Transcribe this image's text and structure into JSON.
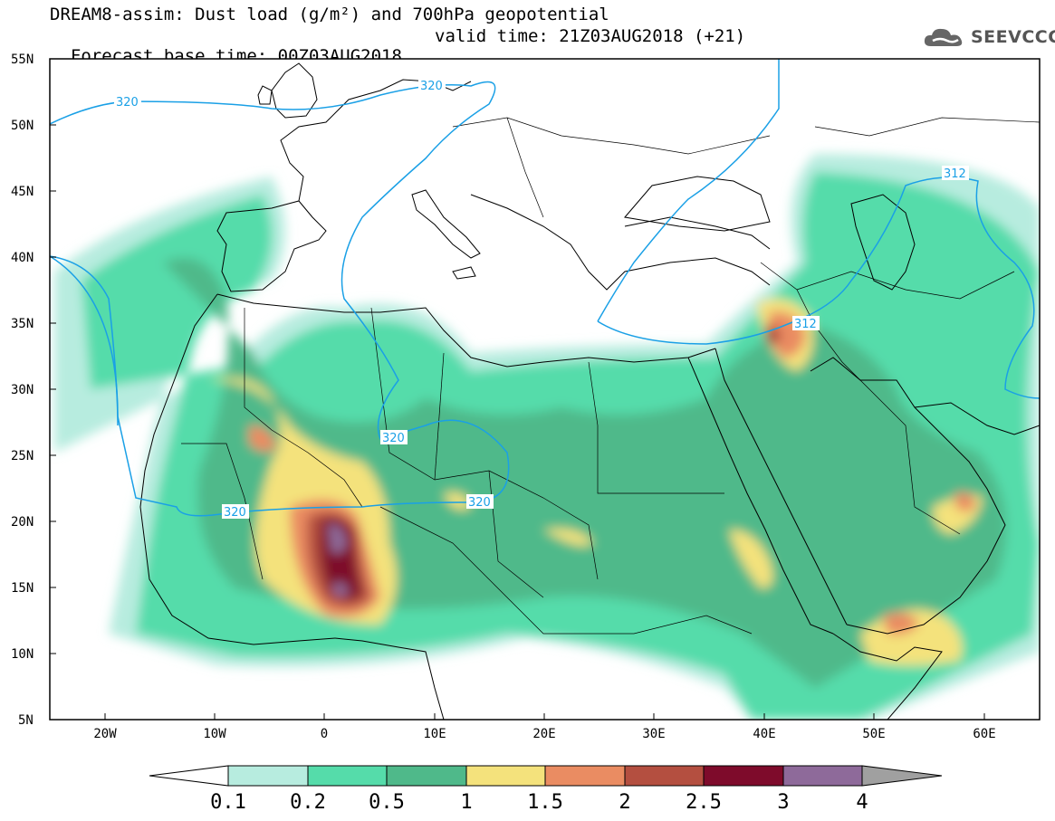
{
  "title_line1": "DREAM8-assim: Dust load (g/m²) and 700hPa geopotential",
  "title_line2_left": "Forecast base time: 00Z03AUG2018",
  "title_line2_right": "valid time: 21Z03AUG2018 (+21)",
  "logo": {
    "text": "SEEVCCC",
    "icon": "cloud-logo-icon"
  },
  "map": {
    "lon_range": [
      -25,
      65
    ],
    "lat_range": [
      5,
      55
    ],
    "lat_labels": [
      "55N",
      "50N",
      "45N",
      "40N",
      "35N",
      "30N",
      "25N",
      "20N",
      "15N",
      "10N",
      "5N"
    ],
    "lon_labels": [
      "20W",
      "10W",
      "0",
      "10E",
      "20E",
      "30E",
      "40E",
      "50E",
      "60E"
    ],
    "contour_labels": [
      "320",
      "320",
      "320",
      "320",
      "320",
      "312",
      "312"
    ],
    "contour_color": "#1aa0e6"
  },
  "colorbar": {
    "labels": [
      "0.1",
      "0.2",
      "0.5",
      "1",
      "1.5",
      "2",
      "2.5",
      "3",
      "4"
    ],
    "colors": [
      "#ffffff",
      "#b7ecdf",
      "#55dcaa",
      "#4fb98a",
      "#f4e27c",
      "#ea8c62",
      "#b44f40",
      "#7e0b2b",
      "#8e6a9a",
      "#a0a0a0"
    ]
  }
}
